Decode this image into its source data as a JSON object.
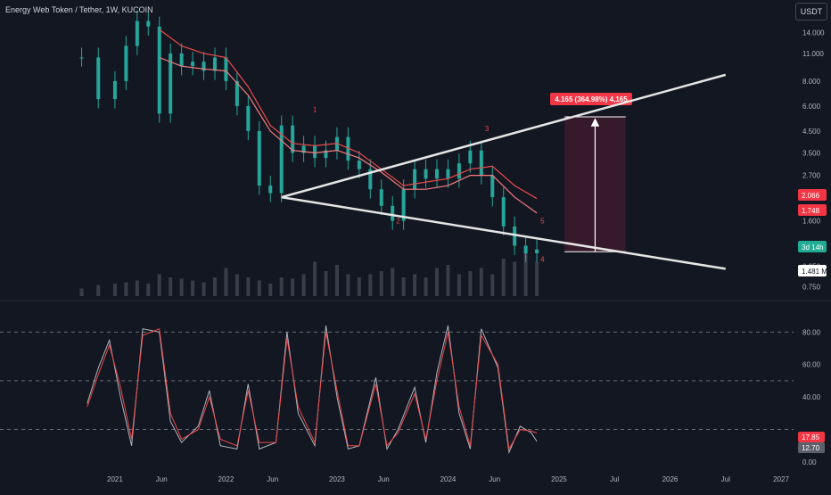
{
  "header": {
    "symbol_title": "Energy Web Token / Tether, 1W, KUCOIN",
    "currency_button": "USDT"
  },
  "colors": {
    "background": "#131722",
    "candle_up": "#26a69a",
    "candle_down": "#26a69a",
    "ma_red": "#e84a4a",
    "ma_pink": "#f77c80",
    "trendline": "#e6e6e6",
    "measure_box": "#3b1a2c",
    "label_red": "#f23645",
    "label_green": "#22ab94",
    "stoch_k": "#b2b5be",
    "stoch_d": "#e84a4a",
    "grid_dashed": "#787b86"
  },
  "chart_data": [
    {
      "type": "line",
      "title": "Energy Web Token / Tether, 1W, KUCOIN",
      "scale": "log",
      "ylim": [
        0.7,
        18
      ],
      "y_ticks": [
        "14.000",
        "11.000",
        "8.000",
        "6.000",
        "4.500",
        "3.500",
        "2.700",
        "1.600",
        "0.950",
        "0.750"
      ],
      "x_ticks": [
        "2021",
        "Jun",
        "2022",
        "Jun",
        "2023",
        "Jun",
        "2024",
        "Jun",
        "2025",
        "Jul",
        "2026",
        "Jul",
        "2027"
      ],
      "series": [
        {
          "style": "candles",
          "x": [
            2020.7,
            2020.85,
            2021.0,
            2021.1,
            2021.2,
            2021.3,
            2021.4,
            2021.5,
            2021.6,
            2021.7,
            2021.8,
            2021.9,
            2022.0,
            2022.1,
            2022.2,
            2022.3,
            2022.4,
            2022.5,
            2022.6,
            2022.7,
            2022.8,
            2022.9,
            2023.0,
            2023.1,
            2023.2,
            2023.3,
            2023.4,
            2023.5,
            2023.6,
            2023.7,
            2023.8,
            2023.9,
            2024.0,
            2024.1,
            2024.2,
            2024.3,
            2024.4,
            2024.5,
            2024.6,
            2024.7,
            2024.8
          ],
          "close": [
            10.5,
            6.5,
            8.0,
            12.0,
            16.0,
            15.0,
            5.5,
            11.0,
            9.5,
            10.0,
            9.0,
            10.5,
            8.0,
            6.0,
            4.5,
            2.4,
            2.2,
            4.8,
            3.5,
            3.8,
            3.3,
            3.6,
            4.2,
            3.2,
            2.9,
            2.3,
            1.9,
            1.6,
            2.3,
            2.9,
            2.6,
            2.9,
            2.6,
            3.1,
            3.6,
            2.7,
            2.1,
            1.5,
            1.2,
            1.1,
            1.15
          ]
        },
        {
          "name": "",
          "style": "moving-average-red",
          "x": [
            2021.4,
            2021.6,
            2021.8,
            2022.0,
            2022.2,
            2022.4,
            2022.6,
            2022.8,
            2023.0,
            2023.2,
            2023.4,
            2023.6,
            2023.8,
            2024.0,
            2024.2,
            2024.4,
            2024.6,
            2024.8
          ],
          "values": [
            14.5,
            12.0,
            11.0,
            10.5,
            7.5,
            4.8,
            3.9,
            3.8,
            3.9,
            3.5,
            2.9,
            2.4,
            2.5,
            2.6,
            2.9,
            3.0,
            2.4,
            2.066
          ]
        },
        {
          "name": "",
          "style": "moving-average-pink",
          "x": [
            2021.4,
            2021.6,
            2021.8,
            2022.0,
            2022.2,
            2022.4,
            2022.6,
            2022.8,
            2023.0,
            2023.2,
            2023.4,
            2023.6,
            2023.8,
            2024.0,
            2024.2,
            2024.4,
            2024.6,
            2024.8
          ],
          "values": [
            10.5,
            9.5,
            9.2,
            9.0,
            6.8,
            4.5,
            3.6,
            3.5,
            3.6,
            3.3,
            2.8,
            2.3,
            2.3,
            2.4,
            2.7,
            2.7,
            2.1,
            1.748
          ]
        }
      ],
      "volume": [
        0.12,
        0.18,
        0.2,
        0.22,
        0.25,
        0.2,
        0.35,
        0.3,
        0.28,
        0.25,
        0.22,
        0.3,
        0.45,
        0.35,
        0.3,
        0.25,
        0.2,
        0.3,
        0.28,
        0.35,
        0.55,
        0.4,
        0.5,
        0.35,
        0.3,
        0.35,
        0.4,
        0.45,
        0.3,
        0.35,
        0.3,
        0.45,
        0.5,
        0.35,
        0.4,
        0.45,
        0.35,
        0.6,
        0.55,
        0.7,
        0.55
      ],
      "trendlines": [
        {
          "label": "upper",
          "from": [
            2022.5,
            2.1
          ],
          "to": [
            2026.5,
            8.6
          ]
        },
        {
          "label": "lower",
          "from": [
            2022.5,
            2.1
          ],
          "to": [
            2026.5,
            0.92
          ]
        }
      ],
      "zigzag_labels": [
        "1",
        "2",
        "3",
        "4",
        "5"
      ],
      "measure_label": "4.165 (364.98%) 4,165",
      "price_labels": [
        {
          "text": "2.066",
          "kind": "red"
        },
        {
          "text": "1.748",
          "kind": "red"
        },
        {
          "text": "3d 14h",
          "kind": "green"
        },
        {
          "text": "1.481 M",
          "kind": "white"
        }
      ]
    },
    {
      "type": "line",
      "title": "",
      "ylim": [
        0,
        95
      ],
      "y_ticks": [
        "80.00",
        "60.00",
        "40.00",
        "0.00"
      ],
      "levels": [
        80,
        50,
        20
      ],
      "series": [
        {
          "name": "",
          "style": "stoch-k",
          "x": [
            2020.75,
            2020.85,
            2020.95,
            2021.05,
            2021.15,
            2021.25,
            2021.4,
            2021.5,
            2021.6,
            2021.75,
            2021.85,
            2021.95,
            2022.1,
            2022.2,
            2022.3,
            2022.45,
            2022.55,
            2022.65,
            2022.8,
            2022.9,
            2023.0,
            2023.1,
            2023.2,
            2023.35,
            2023.45,
            2023.55,
            2023.7,
            2023.8,
            2023.9,
            2024.0,
            2024.1,
            2024.2,
            2024.3,
            2024.45,
            2024.55,
            2024.65,
            2024.75,
            2024.8
          ],
          "values": [
            36,
            58,
            75,
            40,
            10,
            82,
            80,
            25,
            12,
            22,
            44,
            10,
            8,
            48,
            8,
            12,
            80,
            30,
            10,
            84,
            40,
            8,
            10,
            52,
            8,
            20,
            46,
            12,
            55,
            84,
            30,
            8,
            82,
            58,
            6,
            22,
            18,
            12.7
          ]
        },
        {
          "name": "",
          "style": "stoch-d",
          "x": [
            2020.75,
            2020.85,
            2020.95,
            2021.05,
            2021.15,
            2021.25,
            2021.4,
            2021.5,
            2021.6,
            2021.75,
            2021.85,
            2021.95,
            2022.1,
            2022.2,
            2022.3,
            2022.45,
            2022.55,
            2022.65,
            2022.8,
            2022.9,
            2023.0,
            2023.1,
            2023.2,
            2023.35,
            2023.45,
            2023.55,
            2023.7,
            2023.8,
            2023.9,
            2024.0,
            2024.1,
            2024.2,
            2024.3,
            2024.45,
            2024.55,
            2024.65,
            2024.75,
            2024.8
          ],
          "values": [
            34,
            54,
            72,
            46,
            14,
            78,
            82,
            30,
            14,
            20,
            40,
            14,
            10,
            44,
            12,
            12,
            76,
            34,
            12,
            80,
            44,
            10,
            10,
            48,
            10,
            18,
            42,
            14,
            50,
            80,
            34,
            10,
            78,
            60,
            8,
            20,
            19,
            17.85
          ]
        }
      ],
      "price_labels": [
        {
          "text": "17.85",
          "kind": "red"
        },
        {
          "text": "12.70",
          "kind": "gray"
        }
      ]
    }
  ]
}
